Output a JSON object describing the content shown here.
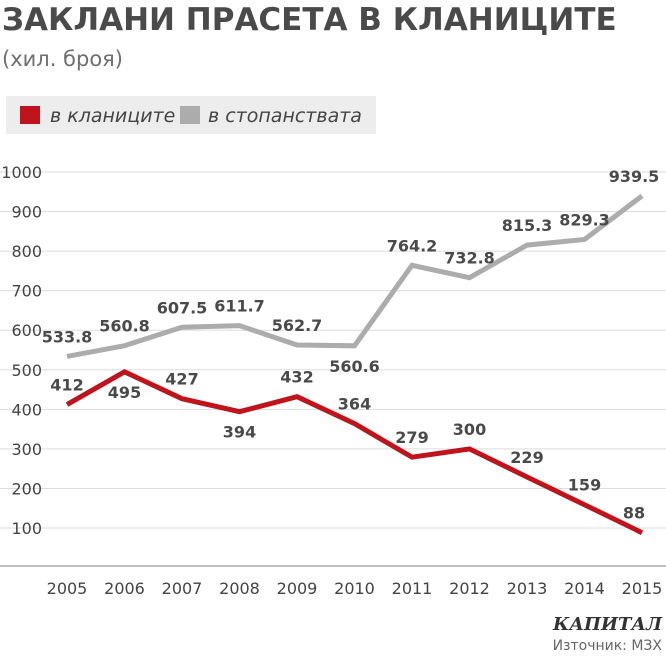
{
  "chart_data": {
    "type": "line",
    "title": "ЗАКЛАНИ ПРАСЕТА В КЛАНИЦИТЕ",
    "subtitle": "(хил. броя)",
    "x": [
      "2005",
      "2006",
      "2007",
      "2008",
      "2009",
      "2010",
      "2011",
      "2012",
      "2013",
      "2014",
      "2015"
    ],
    "series": [
      {
        "name": "в кланиците",
        "color": "#c0141c",
        "values": [
          412,
          495,
          427,
          394,
          432,
          364,
          279,
          300,
          229,
          159,
          88
        ],
        "labels": [
          "412",
          "495",
          "427",
          "394",
          "432",
          "364",
          "279",
          "300",
          "229",
          "159",
          "88"
        ]
      },
      {
        "name": "в стопанствата",
        "color": "#acacac",
        "values": [
          533.8,
          560.8,
          607.5,
          611.7,
          562.7,
          560.6,
          764.2,
          732.8,
          815.3,
          829.3,
          939.5
        ],
        "labels": [
          "533.8",
          "560.8",
          "607.5",
          "611.7",
          "562.7",
          "560.6",
          "764.2",
          "732.8",
          "815.3",
          "829.3",
          "939.5"
        ]
      }
    ],
    "y_ticks": [
      "100",
      "200",
      "300",
      "400",
      "500",
      "600",
      "700",
      "800",
      "900",
      "1000"
    ],
    "ylim": [
      40,
      1000
    ],
    "grid": true,
    "legend_position": "top-left"
  },
  "footer": {
    "brand": "КАПИТАЛ",
    "source": "Източник: МЗХ"
  }
}
